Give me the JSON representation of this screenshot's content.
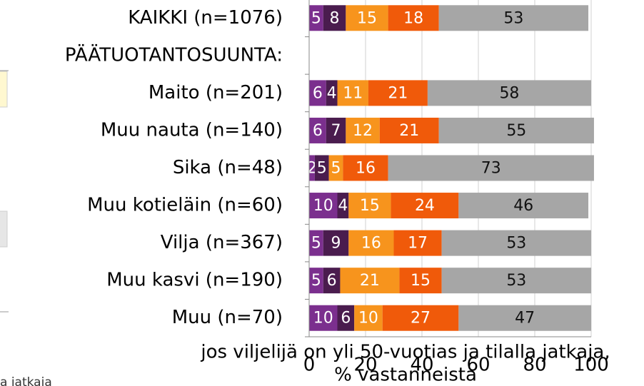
{
  "chart_data": {
    "type": "stacked-bar-horizontal",
    "categories": [
      "KAIKKI (n=1076)",
      "PÄÄTUOTANTOSUUNTA:",
      "Maito (n=201)",
      "Muu nauta (n=140)",
      "Sika (n=48)",
      "Muu kotieläin (n=60)",
      "Vilja (n=367)",
      "Muu kasvi (n=190)",
      "Muu (n=70)"
    ],
    "series": [
      {
        "color": "#7b2f8e",
        "label_color": "#ffffff",
        "values": [
          5,
          null,
          6,
          6,
          2,
          10,
          5,
          5,
          10
        ]
      },
      {
        "color": "#4a1c4e",
        "label_color": "#ffffff",
        "values": [
          8,
          null,
          4,
          7,
          5,
          4,
          9,
          6,
          6
        ]
      },
      {
        "color": "#f7941d",
        "label_color": "#ffffff",
        "values": [
          15,
          null,
          11,
          12,
          5,
          15,
          16,
          21,
          10
        ]
      },
      {
        "color": "#f05a0a",
        "label_color": "#ffffff",
        "values": [
          18,
          null,
          21,
          21,
          16,
          24,
          17,
          15,
          27
        ]
      },
      {
        "color": "#a6a6a6",
        "label_color": "#111111",
        "values": [
          53,
          null,
          58,
          55,
          73,
          46,
          53,
          53,
          47
        ]
      }
    ],
    "xlabel": [
      "jos viljelijä on yli 50-vuotias ja tilalla jatkaja,",
      "% vastanneista"
    ],
    "xlim": [
      0,
      100
    ],
    "xticks": [
      0,
      20,
      40,
      60,
      80,
      100
    ],
    "grid": true,
    "fragment_text": "a jatkaja"
  }
}
